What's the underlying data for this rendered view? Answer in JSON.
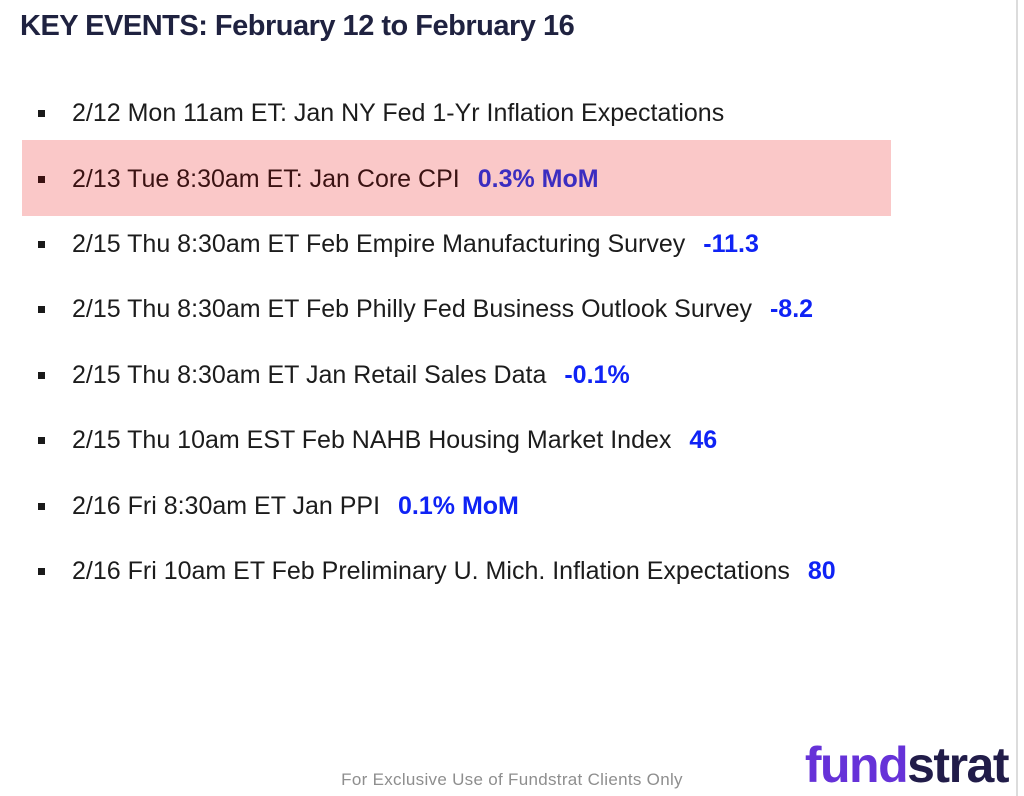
{
  "page": {
    "title": "KEY EVENTS: February 12 to February 16"
  },
  "events": [
    {
      "label": "2/12 Mon 11am ET: Jan NY Fed 1-Yr Inflation Expectations",
      "value": ""
    },
    {
      "label": "2/13 Tue 8:30am ET: Jan Core CPI",
      "value": "0.3% MoM",
      "highlighted": true
    },
    {
      "label": "2/15 Thu 8:30am ET Feb Empire Manufacturing Survey",
      "value": "-11.3"
    },
    {
      "label": "2/15 Thu 8:30am ET Feb Philly Fed Business Outlook Survey",
      "value": "-8.2"
    },
    {
      "label": "2/15 Thu 8:30am ET Jan Retail Sales Data",
      "value": "-0.1%"
    },
    {
      "label": "2/15 Thu 10am EST Feb NAHB Housing Market Index",
      "value": "46"
    },
    {
      "label": "2/16 Fri 8:30am ET Jan PPI",
      "value": "0.1% MoM"
    },
    {
      "label": "2/16 Fri 10am ET Feb Preliminary U. Mich. Inflation Expectations",
      "value": "80"
    }
  ],
  "footer": {
    "disclaimer": "For Exclusive Use of Fundstrat Clients Only",
    "logo_part1": "fund",
    "logo_part2": "strat"
  },
  "colors": {
    "title_navy": "#1f2240",
    "highlight_pink": "#fac8c8",
    "highlight_text_maroon": "#3a1212",
    "value_blue": "#0f23f5",
    "highlight_value_blue": "#3b2dc0",
    "brand_purple": "#6632d8",
    "brand_navy": "#211c49",
    "footer_gray": "#8e8e8e"
  }
}
